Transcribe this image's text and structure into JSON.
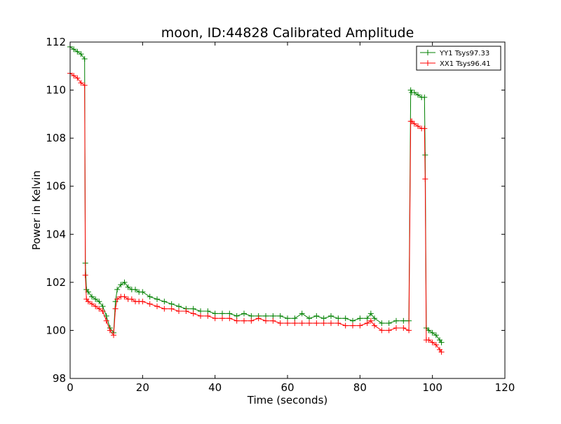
{
  "chart_data": {
    "type": "line",
    "title": "moon, ID:44828 Calibrated Amplitude",
    "xlabel": "Time (seconds)",
    "ylabel": "Power in Kelvin",
    "xlim": [
      0,
      120
    ],
    "ylim": [
      98,
      112
    ],
    "xticks": [
      0,
      20,
      40,
      60,
      80,
      100,
      120
    ],
    "yticks": [
      98,
      100,
      102,
      104,
      106,
      108,
      110,
      112
    ],
    "xtick_labels": [
      "0",
      "20",
      "40",
      "60",
      "80",
      "100",
      "120"
    ],
    "ytick_labels": [
      "98",
      "100",
      "102",
      "104",
      "106",
      "108",
      "110",
      "112"
    ],
    "grid": false,
    "legend_position": "top-right",
    "marker": "plus",
    "series": [
      {
        "name": "YY1 Tsys97.33",
        "color": "#008000",
        "x": [
          0,
          1,
          2,
          3,
          4,
          4.2,
          4.5,
          5,
          6,
          7,
          8,
          9,
          10,
          11,
          12,
          12.5,
          13,
          14,
          15,
          16,
          17,
          18,
          19,
          20,
          22,
          24,
          26,
          28,
          30,
          32,
          34,
          36,
          38,
          40,
          42,
          44,
          46,
          48,
          50,
          52,
          54,
          56,
          58,
          60,
          62,
          64,
          66,
          68,
          70,
          72,
          74,
          76,
          78,
          80,
          82,
          83,
          84,
          86,
          88,
          90,
          92,
          93.5,
          94,
          94.3,
          95,
          96,
          97,
          97.8,
          98,
          98.3,
          99,
          100,
          101,
          102,
          102.5
        ],
        "y": [
          111.8,
          111.7,
          111.6,
          111.5,
          111.3,
          102.8,
          101.7,
          101.6,
          101.4,
          101.3,
          101.2,
          101.0,
          100.6,
          100.1,
          99.9,
          101.2,
          101.7,
          101.9,
          102.0,
          101.8,
          101.7,
          101.7,
          101.6,
          101.6,
          101.4,
          101.3,
          101.2,
          101.1,
          101.0,
          100.9,
          100.9,
          100.8,
          100.8,
          100.7,
          100.7,
          100.7,
          100.6,
          100.7,
          100.6,
          100.6,
          100.6,
          100.6,
          100.6,
          100.5,
          100.5,
          100.7,
          100.5,
          100.6,
          100.5,
          100.6,
          100.5,
          100.5,
          100.4,
          100.5,
          100.5,
          100.7,
          100.5,
          100.3,
          100.3,
          100.4,
          100.4,
          100.4,
          110.0,
          109.9,
          109.9,
          109.8,
          109.7,
          109.7,
          107.3,
          100.1,
          100.0,
          99.9,
          99.8,
          99.6,
          99.5
        ]
      },
      {
        "name": "XX1 Tsys96.41",
        "color": "#ff0000",
        "x": [
          0,
          1,
          2,
          3,
          4,
          4.2,
          4.5,
          5,
          6,
          7,
          8,
          9,
          10,
          11,
          12,
          12.5,
          13,
          14,
          15,
          16,
          17,
          18,
          19,
          20,
          22,
          24,
          26,
          28,
          30,
          32,
          34,
          36,
          38,
          40,
          42,
          44,
          46,
          48,
          50,
          52,
          54,
          56,
          58,
          60,
          62,
          64,
          66,
          68,
          70,
          72,
          74,
          76,
          78,
          80,
          82,
          83,
          84,
          86,
          88,
          90,
          92,
          93.5,
          94,
          94.3,
          95,
          96,
          97,
          97.8,
          98,
          98.3,
          99,
          100,
          101,
          102,
          102.5
        ],
        "y": [
          110.7,
          110.6,
          110.5,
          110.3,
          110.2,
          102.3,
          101.3,
          101.2,
          101.1,
          101.0,
          100.9,
          100.8,
          100.4,
          100.0,
          99.8,
          100.9,
          101.3,
          101.4,
          101.4,
          101.3,
          101.3,
          101.2,
          101.2,
          101.2,
          101.1,
          101.0,
          100.9,
          100.9,
          100.8,
          100.8,
          100.7,
          100.6,
          100.6,
          100.5,
          100.5,
          100.5,
          100.4,
          100.4,
          100.4,
          100.5,
          100.4,
          100.4,
          100.3,
          100.3,
          100.3,
          100.3,
          100.3,
          100.3,
          100.3,
          100.3,
          100.3,
          100.2,
          100.2,
          100.2,
          100.3,
          100.4,
          100.2,
          100.0,
          100.0,
          100.1,
          100.1,
          100.0,
          108.7,
          108.7,
          108.6,
          108.5,
          108.4,
          108.4,
          106.3,
          99.6,
          99.6,
          99.5,
          99.4,
          99.2,
          99.1
        ]
      }
    ]
  }
}
